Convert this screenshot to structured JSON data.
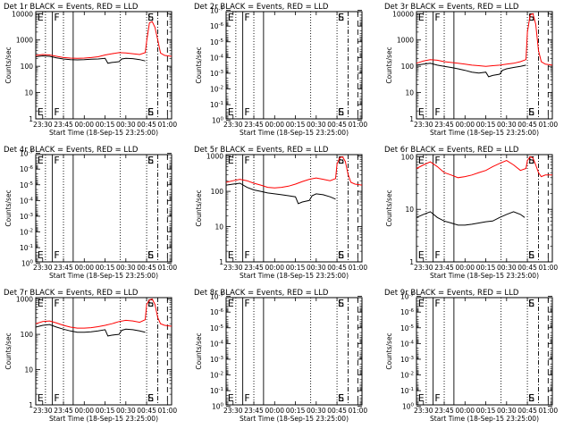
{
  "figure": {
    "xlabel": "Start Time (18-Sep-15 23:25:00)",
    "ylabel": "Counts/sec",
    "x_ticks": [
      "23:30",
      "23:45",
      "00:00",
      "00:15",
      "00:30",
      "00:45",
      "01:00"
    ],
    "x_range_minutes": [
      0,
      98
    ],
    "x_tick_minutes": [
      5,
      20,
      35,
      50,
      65,
      80,
      95
    ],
    "markers": {
      "dotted_minutes": [
        7,
        20,
        61,
        80
      ],
      "solid_minutes": [
        12,
        27
      ],
      "dashdot_minutes": [
        88
      ],
      "dashed_minutes": [
        95
      ],
      "letters": [
        {
          "text": "E",
          "minute": 0.5
        },
        {
          "text": "F",
          "minute": 12.5
        },
        {
          "text": "S",
          "minute": 80
        },
        {
          "text": "E",
          "minute": 80
        }
      ]
    },
    "colors": {
      "events": "#000000",
      "lld": "#ff0000"
    }
  },
  "chart_data": [
    {
      "type": "line",
      "title": "Det 1r BLACK = Events, RED = LLD",
      "scale": "log",
      "ylim": [
        1,
        12000
      ],
      "ytick_values": [
        1,
        10,
        100,
        1000,
        10000
      ],
      "ytick_labels": [
        "1",
        "10",
        "100",
        "1000",
        "10000"
      ],
      "series": [
        {
          "color": "red",
          "x": [
            0,
            5,
            10,
            15,
            20,
            25,
            30,
            35,
            40,
            45,
            50,
            55,
            60,
            65,
            70,
            75,
            79,
            80,
            82,
            84,
            86,
            88,
            90,
            93,
            98
          ],
          "y": [
            260,
            280,
            270,
            240,
            215,
            205,
            200,
            205,
            215,
            230,
            270,
            300,
            330,
            320,
            300,
            280,
            330,
            900,
            4500,
            5000,
            3000,
            1000,
            320,
            260,
            240
          ]
        },
        {
          "color": "black",
          "x": [
            0,
            5,
            10,
            15,
            20,
            25,
            30,
            35,
            40,
            45,
            50,
            52,
            55,
            60,
            62,
            65,
            70,
            75,
            79
          ],
          "y": [
            230,
            250,
            240,
            210,
            190,
            180,
            175,
            178,
            185,
            190,
            200,
            130,
            140,
            150,
            190,
            200,
            195,
            180,
            160
          ]
        }
      ]
    },
    {
      "type": "line",
      "title": "Det 2r BLACK = Events, RED = LLD",
      "scale": "log",
      "ylim": [
        0.8,
        1.2e-07
      ],
      "ytick_values": [
        1,
        0.1,
        0.01,
        0.001,
        0.0001,
        1e-05,
        1e-06,
        1e-07
      ],
      "ytick_labels": [
        "10^0",
        "10^-1",
        "10^-2",
        "10^-3",
        "10^-4",
        "10^-5",
        "10^-6",
        "10^-7"
      ],
      "series": []
    },
    {
      "type": "line",
      "title": "Det 3r BLACK = Events, RED = LLD",
      "scale": "log",
      "ylim": [
        1,
        12000
      ],
      "ytick_values": [
        1,
        10,
        100,
        1000,
        10000
      ],
      "ytick_labels": [
        "1",
        "10",
        "100",
        "1000",
        "10000"
      ],
      "series": [
        {
          "color": "red",
          "x": [
            0,
            5,
            10,
            15,
            20,
            25,
            30,
            35,
            40,
            45,
            50,
            55,
            60,
            65,
            70,
            75,
            79,
            80,
            82,
            84,
            86,
            88,
            90,
            93,
            98
          ],
          "y": [
            130,
            160,
            180,
            170,
            150,
            140,
            130,
            120,
            110,
            105,
            100,
            105,
            110,
            120,
            130,
            150,
            180,
            2000,
            9000,
            10000,
            4000,
            400,
            150,
            120,
            110
          ]
        },
        {
          "color": "black",
          "x": [
            0,
            5,
            10,
            15,
            20,
            25,
            30,
            35,
            40,
            45,
            50,
            52,
            55,
            60,
            62,
            65,
            70,
            75,
            79
          ],
          "y": [
            110,
            120,
            130,
            110,
            100,
            90,
            80,
            70,
            60,
            55,
            60,
            40,
            45,
            50,
            70,
            80,
            90,
            100,
            110
          ]
        }
      ]
    },
    {
      "type": "line",
      "title": "Det 4r BLACK = Events, RED = LLD",
      "scale": "log",
      "ylim": [
        0.8,
        1.2e-07
      ],
      "ytick_values": [
        1,
        0.1,
        0.01,
        0.001,
        0.0001,
        1e-05,
        1e-06,
        1e-07
      ],
      "ytick_labels": [
        "10^0",
        "10^-1",
        "10^-2",
        "10^-3",
        "10^-4",
        "10^-5",
        "10^-6",
        "10^-7"
      ],
      "series": []
    },
    {
      "type": "line",
      "title": "Det 5r BLACK = Events, RED = LLD",
      "scale": "log",
      "ylim": [
        1,
        1100
      ],
      "ytick_values": [
        1,
        10,
        100,
        1000
      ],
      "ytick_labels": [
        "1",
        "10",
        "100",
        "1000"
      ],
      "series": [
        {
          "color": "red",
          "x": [
            0,
            5,
            10,
            15,
            20,
            25,
            30,
            35,
            40,
            45,
            50,
            55,
            60,
            65,
            70,
            75,
            79,
            80,
            82,
            84,
            86,
            88,
            90,
            93,
            98
          ],
          "y": [
            180,
            200,
            220,
            200,
            170,
            150,
            130,
            125,
            130,
            140,
            160,
            190,
            220,
            240,
            220,
            200,
            230,
            600,
            900,
            950,
            700,
            300,
            180,
            160,
            150
          ]
        },
        {
          "color": "black",
          "x": [
            0,
            5,
            10,
            15,
            20,
            25,
            30,
            35,
            40,
            45,
            50,
            52,
            55,
            60,
            62,
            65,
            70,
            75,
            79
          ],
          "y": [
            150,
            160,
            170,
            130,
            110,
            100,
            90,
            85,
            80,
            75,
            70,
            45,
            50,
            55,
            75,
            85,
            80,
            70,
            60
          ]
        }
      ]
    },
    {
      "type": "line",
      "title": "Det 6r BLACK = Events, RED = LLD",
      "scale": "log",
      "ylim": [
        1,
        110
      ],
      "ytick_values": [
        1,
        10,
        100
      ],
      "ytick_labels": [
        "1",
        "10",
        "100"
      ],
      "series": [
        {
          "color": "red",
          "x": [
            0,
            5,
            10,
            15,
            20,
            25,
            30,
            35,
            40,
            45,
            50,
            55,
            60,
            65,
            70,
            75,
            79,
            80,
            82,
            84,
            86,
            88,
            90,
            93,
            98
          ],
          "y": [
            60,
            70,
            80,
            65,
            50,
            45,
            40,
            42,
            45,
            50,
            55,
            65,
            75,
            85,
            70,
            55,
            60,
            85,
            100,
            95,
            70,
            50,
            42,
            45,
            45
          ]
        },
        {
          "color": "black",
          "x": [
            0,
            5,
            10,
            15,
            20,
            25,
            30,
            35,
            40,
            45,
            50,
            55,
            60,
            65,
            70,
            75,
            78
          ],
          "y": [
            7,
            8,
            9,
            7,
            6,
            5.5,
            5,
            5,
            5.2,
            5.5,
            5.8,
            6,
            7,
            8,
            9,
            8,
            7
          ]
        }
      ]
    },
    {
      "type": "line",
      "title": "Det 7r BLACK = Events, RED = LLD",
      "scale": "log",
      "ylim": [
        1,
        1100
      ],
      "ytick_values": [
        1,
        10,
        100,
        1000
      ],
      "ytick_labels": [
        "1",
        "10",
        "100",
        "1000"
      ],
      "series": [
        {
          "color": "red",
          "x": [
            0,
            5,
            10,
            15,
            20,
            25,
            30,
            35,
            40,
            45,
            50,
            55,
            60,
            65,
            70,
            75,
            79,
            80,
            82,
            84,
            86,
            88,
            90,
            93,
            98
          ],
          "y": [
            200,
            230,
            240,
            210,
            180,
            160,
            150,
            150,
            155,
            165,
            180,
            200,
            230,
            250,
            240,
            220,
            260,
            700,
            950,
            1000,
            700,
            300,
            200,
            180,
            170
          ]
        },
        {
          "color": "black",
          "x": [
            0,
            5,
            10,
            15,
            20,
            25,
            30,
            35,
            40,
            45,
            50,
            52,
            55,
            60,
            62,
            65,
            70,
            75,
            79
          ],
          "y": [
            160,
            180,
            190,
            160,
            140,
            125,
            115,
            115,
            118,
            125,
            135,
            90,
            95,
            100,
            130,
            140,
            135,
            125,
            115
          ]
        }
      ]
    },
    {
      "type": "line",
      "title": "Det 8r BLACK = Events, RED = LLD",
      "scale": "log",
      "ylim": [
        0.8,
        1.2e-07
      ],
      "ytick_values": [
        1,
        0.1,
        0.01,
        0.001,
        0.0001,
        1e-05,
        1e-06,
        1e-07
      ],
      "ytick_labels": [
        "10^0",
        "10^-1",
        "10^-2",
        "10^-3",
        "10^-4",
        "10^-5",
        "10^-6",
        "10^-7"
      ],
      "series": []
    },
    {
      "type": "line",
      "title": "Det 9r BLACK = Events, RED = LLD",
      "scale": "log",
      "ylim": [
        0.8,
        1.2e-07
      ],
      "ytick_values": [
        1,
        0.1,
        0.01,
        0.001,
        0.0001,
        1e-05,
        1e-06,
        1e-07
      ],
      "ytick_labels": [
        "10^0",
        "10^-1",
        "10^-2",
        "10^-3",
        "10^-4",
        "10^-5",
        "10^-6",
        "10^-7"
      ],
      "series": []
    }
  ]
}
